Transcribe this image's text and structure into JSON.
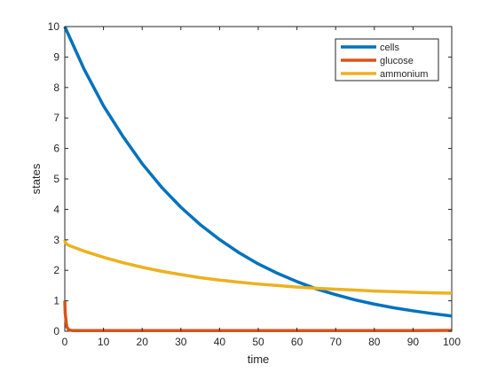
{
  "chart_data": {
    "type": "line",
    "title": "",
    "xlabel": "time",
    "ylabel": "states",
    "xlim": [
      0,
      100
    ],
    "ylim": [
      0,
      10
    ],
    "xticks": [
      0,
      10,
      20,
      30,
      40,
      50,
      60,
      70,
      80,
      90,
      100
    ],
    "yticks": [
      0,
      1,
      2,
      3,
      4,
      5,
      6,
      7,
      8,
      9,
      10
    ],
    "grid": false,
    "box": true,
    "legend_position": "top-right",
    "series": [
      {
        "name": "cells",
        "color": "#0072BD",
        "x": [
          0,
          5,
          10,
          15,
          20,
          25,
          30,
          35,
          40,
          45,
          50,
          55,
          60,
          65,
          70,
          75,
          80,
          85,
          90,
          95,
          100
        ],
        "y": [
          10.0,
          8.6,
          7.4,
          6.4,
          5.5,
          4.73,
          4.07,
          3.5,
          3.01,
          2.58,
          2.21,
          1.9,
          1.63,
          1.39,
          1.2,
          1.03,
          0.89,
          0.77,
          0.67,
          0.58,
          0.5
        ]
      },
      {
        "name": "glucose",
        "color": "#D95319",
        "x": [
          0,
          0.1,
          0.5,
          1,
          2,
          5,
          10,
          20,
          30,
          40,
          50,
          60,
          70,
          80,
          90,
          100
        ],
        "y": [
          1.0,
          0.6,
          0.15,
          0.05,
          0.02,
          0.02,
          0.02,
          0.02,
          0.02,
          0.02,
          0.02,
          0.02,
          0.02,
          0.02,
          0.02,
          0.03
        ]
      },
      {
        "name": "ammonium",
        "color": "#EDB120",
        "x": [
          0,
          0.1,
          0.5,
          1,
          5,
          10,
          15,
          20,
          25,
          30,
          35,
          40,
          45,
          50,
          55,
          60,
          65,
          70,
          75,
          80,
          85,
          90,
          95,
          100
        ],
        "y": [
          3.0,
          2.92,
          2.86,
          2.82,
          2.63,
          2.43,
          2.25,
          2.1,
          1.97,
          1.86,
          1.76,
          1.68,
          1.61,
          1.55,
          1.5,
          1.45,
          1.41,
          1.38,
          1.35,
          1.32,
          1.3,
          1.28,
          1.26,
          1.25
        ]
      }
    ]
  }
}
